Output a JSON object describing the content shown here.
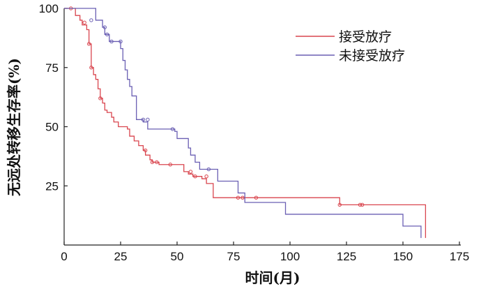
{
  "chart_data": {
    "type": "line",
    "subtype": "kaplan-meier-step",
    "xlabel": "时间(月)",
    "ylabel": "无远处转移生存率(%)",
    "xlim": [
      0,
      175
    ],
    "ylim": [
      0,
      100
    ],
    "xticks": [
      0,
      25,
      50,
      75,
      100,
      125,
      150,
      175
    ],
    "yticks": [
      25,
      50,
      75,
      100
    ],
    "legend_position": "top-right",
    "grid": false,
    "series": [
      {
        "name": "接受放疗",
        "color": "#d9454e",
        "steps": [
          [
            0,
            100
          ],
          [
            4,
            100
          ],
          [
            5,
            97
          ],
          [
            7,
            95
          ],
          [
            8,
            93
          ],
          [
            10,
            91
          ],
          [
            11,
            85
          ],
          [
            12,
            75
          ],
          [
            13,
            72
          ],
          [
            14,
            70
          ],
          [
            15,
            66
          ],
          [
            16,
            62
          ],
          [
            17,
            60
          ],
          [
            18,
            57
          ],
          [
            19,
            56
          ],
          [
            21,
            54
          ],
          [
            22,
            52
          ],
          [
            24,
            50
          ],
          [
            28,
            49
          ],
          [
            29,
            46
          ],
          [
            31,
            44
          ],
          [
            33,
            42
          ],
          [
            35,
            40
          ],
          [
            36,
            38
          ],
          [
            38,
            36
          ],
          [
            39,
            35
          ],
          [
            42,
            34
          ],
          [
            53,
            31
          ],
          [
            55,
            30
          ],
          [
            57,
            29
          ],
          [
            61,
            28
          ],
          [
            63,
            26
          ],
          [
            66,
            20
          ],
          [
            122,
            17
          ],
          [
            160,
            17
          ],
          [
            160,
            3
          ]
        ],
        "censored": [
          [
            3,
            100
          ],
          [
            9,
            94
          ],
          [
            11,
            85
          ],
          [
            12,
            75
          ],
          [
            16,
            62
          ],
          [
            36,
            40
          ],
          [
            39,
            35
          ],
          [
            41,
            35
          ],
          [
            47,
            34
          ],
          [
            56,
            31
          ],
          [
            58,
            29
          ],
          [
            63,
            29
          ],
          [
            77,
            20
          ],
          [
            79,
            20
          ],
          [
            85,
            20
          ],
          [
            122,
            17
          ],
          [
            131,
            17
          ],
          [
            132,
            17
          ]
        ]
      },
      {
        "name": "未接受放疗",
        "color": "#6a5fb3",
        "steps": [
          [
            0,
            100
          ],
          [
            13,
            100
          ],
          [
            14,
            95
          ],
          [
            17,
            92
          ],
          [
            18,
            89
          ],
          [
            20,
            86
          ],
          [
            25,
            83
          ],
          [
            26,
            78
          ],
          [
            27,
            74
          ],
          [
            28,
            70
          ],
          [
            29,
            67
          ],
          [
            30,
            63
          ],
          [
            32,
            53
          ],
          [
            35,
            52
          ],
          [
            37,
            49
          ],
          [
            49,
            48
          ],
          [
            50,
            45
          ],
          [
            55,
            41
          ],
          [
            56,
            38
          ],
          [
            58,
            35
          ],
          [
            60,
            32
          ],
          [
            68,
            27
          ],
          [
            77,
            22
          ],
          [
            80,
            18
          ],
          [
            98,
            13
          ],
          [
            150,
            8
          ],
          [
            158,
            3
          ]
        ],
        "censored": [
          [
            12,
            95
          ],
          [
            18,
            92
          ],
          [
            19,
            89
          ],
          [
            21,
            86
          ],
          [
            25,
            86
          ],
          [
            35,
            53
          ],
          [
            37,
            53
          ],
          [
            48,
            49
          ],
          [
            64,
            32
          ]
        ]
      }
    ]
  }
}
